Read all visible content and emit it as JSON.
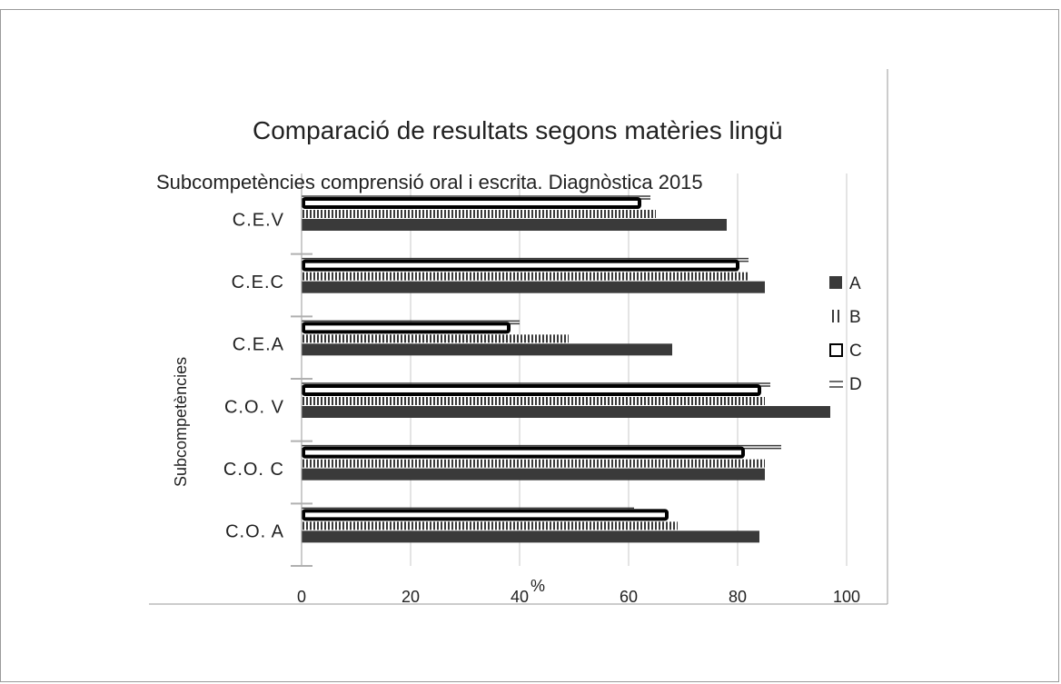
{
  "chart_data": {
    "type": "bar",
    "orientation": "horizontal",
    "title": "Comparació de resultats segons matèries lingü",
    "subtitle": "Subcompetències comprensió oral i escrita. Diagnòstica 2015",
    "xlabel": "%",
    "ylabel": "Subcompetències",
    "xlim": [
      0,
      100
    ],
    "xticks": [
      "0",
      "20",
      "40",
      "60",
      "80",
      "100"
    ],
    "categories": [
      "C.E.V",
      "C.E.C",
      "C.E.A",
      "C.O. V",
      "C.O. C",
      "C.O. A"
    ],
    "series": [
      {
        "name": "A",
        "values": [
          78,
          85,
          68,
          97,
          85,
          84
        ],
        "pattern": "solid"
      },
      {
        "name": "B",
        "values": [
          65,
          82,
          49,
          85,
          85,
          69
        ],
        "pattern": "vertical-hatch"
      },
      {
        "name": "C",
        "values": [
          62,
          80,
          38,
          84,
          81,
          67
        ],
        "pattern": "open"
      },
      {
        "name": "D",
        "values": [
          64,
          82,
          40,
          86,
          88,
          61
        ],
        "pattern": "horizontal-lines"
      }
    ],
    "grid": "vertical",
    "legend_position": "right",
    "colors": {
      "dark": "#3a3a3a",
      "grid": "#c8c8c8",
      "text": "#222222"
    }
  }
}
